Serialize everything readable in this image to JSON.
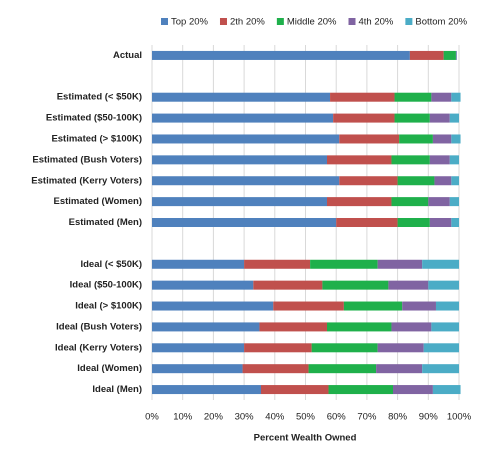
{
  "chart_data": {
    "type": "bar",
    "orientation": "horizontal",
    "stacked": true,
    "x_label": "Percent Wealth Owned",
    "categories": [
      "Actual",
      null,
      "Estimated (< $50K)",
      "Estimated ($50-100K)",
      "Estimated (> $100K)",
      "Estimated (Bush Voters)",
      "Estimated (Kerry Voters)",
      "Estimated (Women)",
      "Estimated (Men)",
      null,
      "Ideal (< $50K)",
      "Ideal ($50-100K)",
      "Ideal (> $100K)",
      "Ideal (Bush Voters)",
      "Ideal (Kerry Voters)",
      "Ideal (Women)",
      "Ideal (Men)"
    ],
    "series": [
      {
        "name": "Top 20%",
        "color": "#4f81bd",
        "values": [
          84,
          null,
          58,
          59,
          61,
          57,
          61,
          57,
          60,
          null,
          30,
          33,
          39.5,
          35,
          30,
          29.5,
          35.5
        ]
      },
      {
        "name": "2th 20%",
        "color": "#c0504d",
        "values": [
          11,
          null,
          21,
          20,
          19.5,
          21,
          19,
          21,
          20,
          null,
          21.5,
          22.5,
          23,
          22,
          22,
          21.5,
          22
        ]
      },
      {
        "name": "Middle 20%",
        "color": "#1fb04b",
        "values": [
          4,
          null,
          12,
          11.5,
          11,
          12.5,
          12,
          12,
          10.5,
          null,
          22,
          21.5,
          19,
          21,
          21.5,
          22,
          21
        ]
      },
      {
        "name": "4th 20%",
        "color": "#8064a2",
        "values": [
          0.2,
          null,
          6.5,
          6.5,
          6,
          6.5,
          5.5,
          7,
          7,
          null,
          14.5,
          13,
          11,
          13,
          15,
          15,
          13
        ]
      },
      {
        "name": "Bottom 20%",
        "color": "#4bacc6",
        "values": [
          0.1,
          null,
          3,
          3,
          3,
          3,
          2.5,
          3,
          2.5,
          null,
          12,
          10,
          7.5,
          9,
          11.5,
          12,
          9
        ]
      }
    ],
    "xlim": [
      0,
      100
    ],
    "xticks": [
      {
        "value": 0,
        "label": "0%"
      },
      {
        "value": 10,
        "label": "10%"
      },
      {
        "value": 20,
        "label": "20%"
      },
      {
        "value": 30,
        "label": "30%"
      },
      {
        "value": 40,
        "label": "40%"
      },
      {
        "value": 50,
        "label": "50%"
      },
      {
        "value": 60,
        "label": "60%"
      },
      {
        "value": 70,
        "label": "70%"
      },
      {
        "value": 80,
        "label": "80%"
      },
      {
        "value": 90,
        "label": "90%"
      },
      {
        "value": 100,
        "label": "100%"
      }
    ],
    "grid": true,
    "legend": "top"
  }
}
